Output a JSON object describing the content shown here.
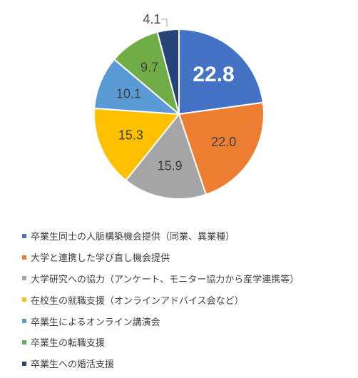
{
  "chart_data": {
    "type": "pie",
    "title": "",
    "legend_position": "bottom",
    "slices": [
      {
        "label": "卒業生同士の人脈構築機会提供（同業、異業種）",
        "value": 22.8,
        "value_label": "22.8",
        "color": "#4472C4",
        "text_color": "#ffffff"
      },
      {
        "label": "大学と連携した学び直し機会提供",
        "value": 22.0,
        "value_label": "22.0",
        "color": "#ED7D31",
        "text_color": "#404040"
      },
      {
        "label": "大学研究への協力（アンケート、モニター協力から産学連携等）",
        "value": 15.9,
        "value_label": "15.9",
        "color": "#A5A5A5",
        "text_color": "#404040"
      },
      {
        "label": "在校生の就職支援（オンラインアドバイス会など）",
        "value": 15.3,
        "value_label": "15.3",
        "color": "#FFC000",
        "text_color": "#404040"
      },
      {
        "label": "卒業生によるオンライン講演会",
        "value": 10.1,
        "value_label": "10.1",
        "color": "#5B9BD5",
        "text_color": "#404040"
      },
      {
        "label": "卒業生の転職支援",
        "value": 9.7,
        "value_label": "9.7",
        "color": "#70AD47",
        "text_color": "#404040"
      },
      {
        "label": "卒業生への婚活支援",
        "value": 4.1,
        "value_label": "4.1",
        "color": "#264478",
        "text_color": "#404040"
      }
    ]
  }
}
